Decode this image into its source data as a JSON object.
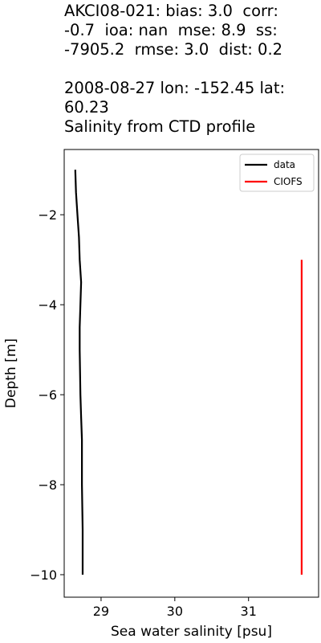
{
  "chart_data": {
    "type": "line",
    "title_lines": [
      "AKCI08-021: bias: 3.0  corr:",
      "-0.7  ioa: nan  mse: 8.9  ss:",
      "-7905.2  rmse: 3.0  dist: 0.2",
      "",
      "2008-08-27 lon: -152.45 lat:",
      "60.23",
      "Salinity from CTD profile"
    ],
    "xlabel": "Sea water salinity [psu]",
    "ylabel": "Depth [m]",
    "xlim": [
      28.5,
      31.95
    ],
    "ylim": [
      -10.5,
      -0.55
    ],
    "xticks": [
      29,
      30,
      31
    ],
    "yticks": [
      -2,
      -4,
      -6,
      -8,
      -10
    ],
    "xtick_labels": [
      "29",
      "30",
      "31"
    ],
    "ytick_labels": [
      "−2",
      "−4",
      "−6",
      "−8",
      "−10"
    ],
    "grid": false,
    "legend_position": "top-right",
    "series": [
      {
        "name": "data",
        "color": "#000000",
        "x": [
          28.65,
          28.66,
          28.68,
          28.7,
          28.71,
          28.73,
          28.72,
          28.71,
          28.71,
          28.72,
          28.73,
          28.74,
          28.74,
          28.75,
          28.75
        ],
        "y": [
          -1.0,
          -1.5,
          -2.0,
          -2.5,
          -3.0,
          -3.5,
          -4.0,
          -4.5,
          -5.0,
          -6.0,
          -6.5,
          -7.0,
          -8.0,
          -9.0,
          -10.0
        ]
      },
      {
        "name": "CIOFS",
        "color": "#ff0000",
        "x": [
          31.72,
          31.72
        ],
        "y": [
          -3.0,
          -10.0
        ]
      }
    ]
  }
}
